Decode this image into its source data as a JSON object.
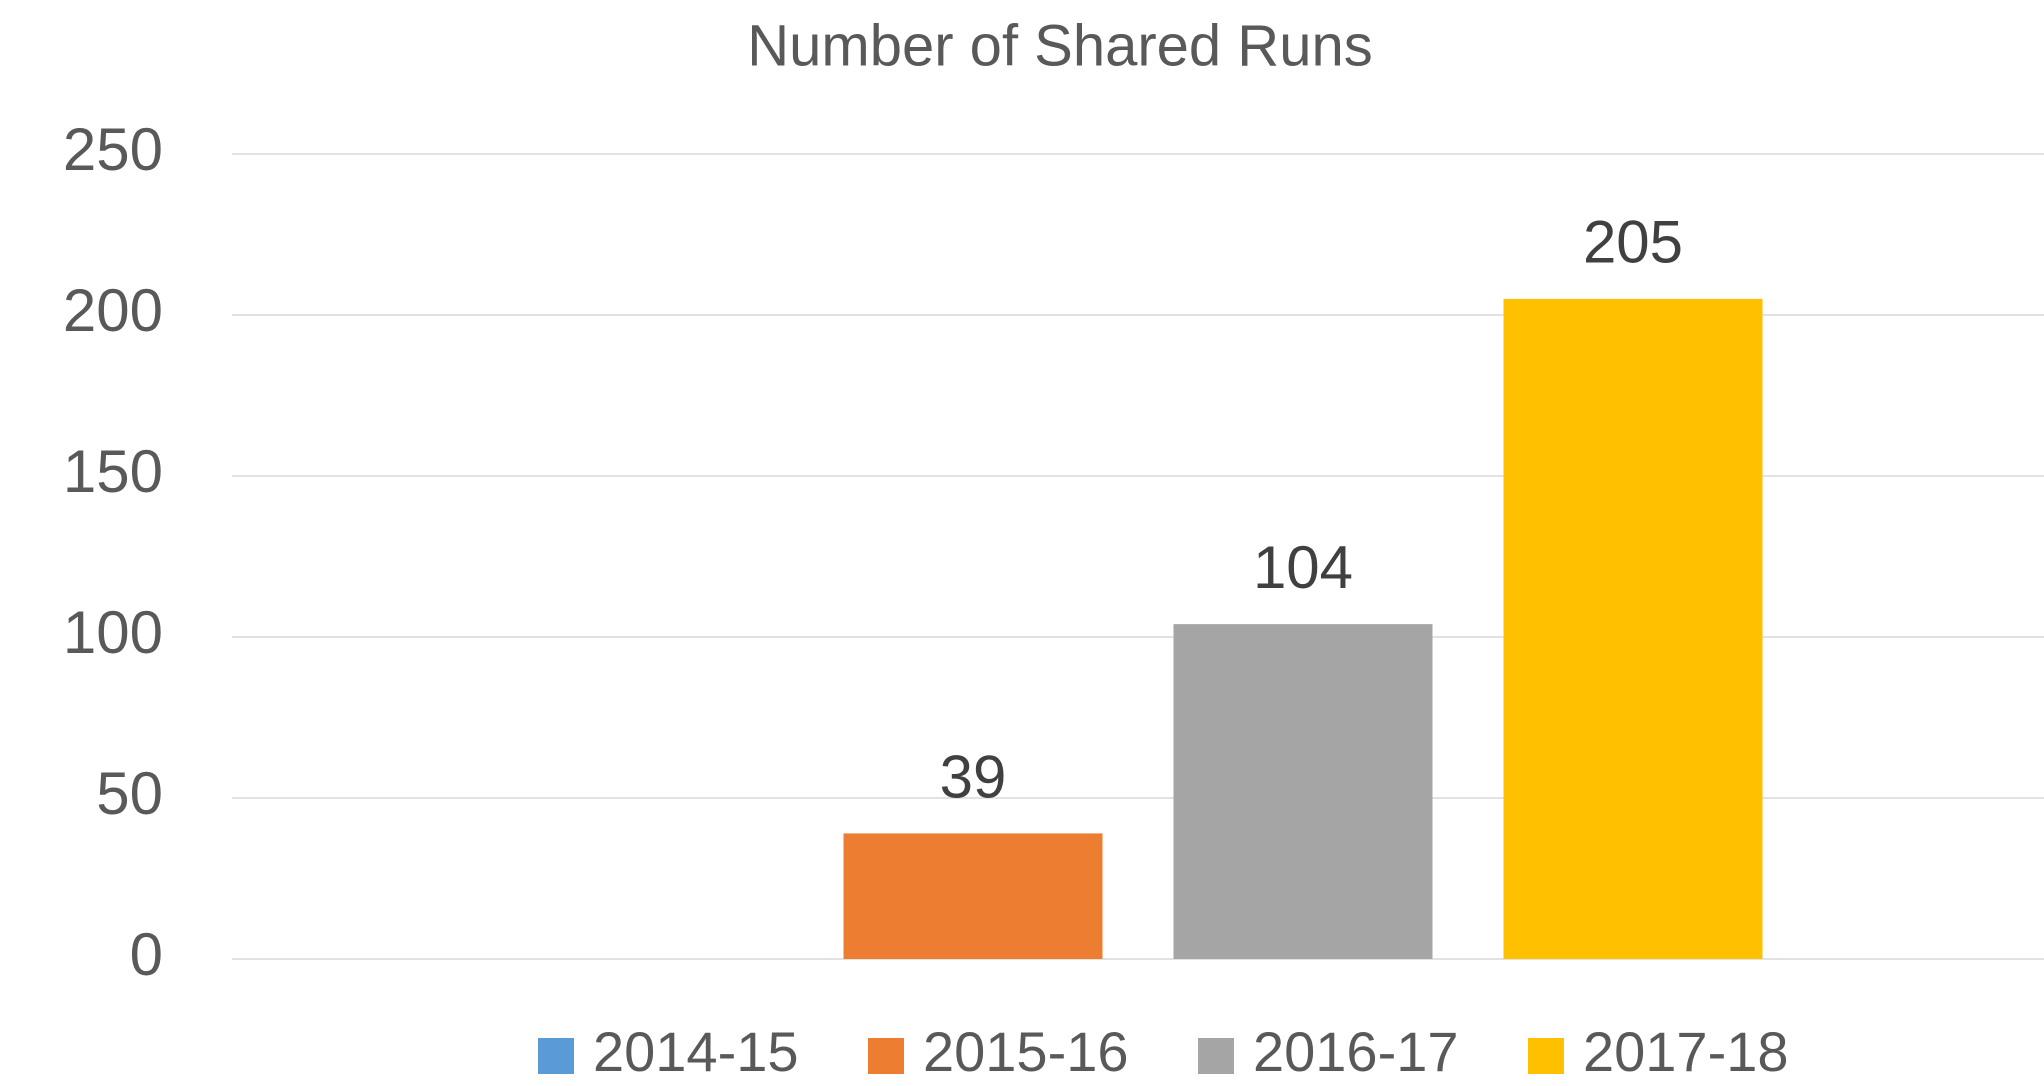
{
  "chart_data": {
    "type": "bar",
    "title": "Number of Shared Runs",
    "categories": [
      null
    ],
    "series": [
      {
        "name": "2014-15",
        "color": "#5b9bd5",
        "values": [
          null
        ]
      },
      {
        "name": "2015-16",
        "color": "#ed7d31",
        "values": [
          39
        ]
      },
      {
        "name": "2016-17",
        "color": "#a5a5a5",
        "values": [
          104
        ]
      },
      {
        "name": "2017-18",
        "color": "#ffc000",
        "values": [
          205
        ]
      }
    ],
    "ylim": [
      0,
      250
    ],
    "yticks": [
      0,
      50,
      100,
      150,
      200,
      250
    ],
    "grid": true,
    "legend": "bottom"
  }
}
